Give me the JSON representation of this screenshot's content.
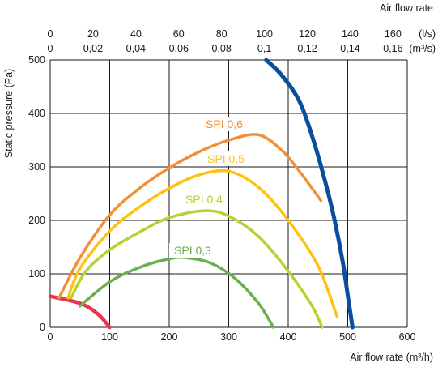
{
  "chart_data": {
    "type": "line",
    "title": "",
    "xlabel": "Air flow rate (m³/h)",
    "ylabel": "Static pressure (Pa)",
    "top_axis_title": "Air flow rate",
    "xlim": [
      0,
      600
    ],
    "ylim": [
      0,
      500
    ],
    "x_ticks": [
      "0",
      "100",
      "200",
      "300",
      "400",
      "500",
      "600"
    ],
    "y_ticks": [
      "0",
      "100",
      "200",
      "300",
      "400",
      "500"
    ],
    "top_ticks_ls": [
      "0",
      "20",
      "40",
      "60",
      "80",
      "100",
      "120",
      "140",
      "160"
    ],
    "top_unit_ls": "(l/s)",
    "top_ticks_m3s": [
      "0",
      "0,02",
      "0,04",
      "0,06",
      "0,08",
      "0,1",
      "0,12",
      "0,14",
      "0,16"
    ],
    "top_unit_m3s": "(m³/s)",
    "grid": true,
    "series": [
      {
        "name": "",
        "color": "#e8344e",
        "x": [
          0,
          50,
          80,
          100
        ],
        "y": [
          58,
          45,
          25,
          0
        ]
      },
      {
        "name": "SPI 0,3",
        "color": "#6ab04c",
        "x": [
          50,
          100,
          150,
          200,
          230,
          270,
          310,
          350,
          375
        ],
        "y": [
          40,
          85,
          112,
          128,
          130,
          120,
          92,
          45,
          0
        ]
      },
      {
        "name": "SPI 0,4",
        "color": "#b5d334",
        "x": [
          35,
          60,
          100,
          150,
          200,
          260,
          300,
          350,
          400,
          440,
          457
        ],
        "y": [
          55,
          105,
          145,
          178,
          205,
          218,
          208,
          170,
          105,
          40,
          0
        ]
      },
      {
        "name": "SPI 0,5",
        "color": "#ffc20e",
        "x": [
          30,
          50,
          100,
          150,
          200,
          250,
          300,
          350,
          400,
          450,
          482
        ],
        "y": [
          55,
          110,
          180,
          225,
          260,
          285,
          292,
          262,
          200,
          115,
          20
        ]
      },
      {
        "name": "SPI 0,6",
        "color": "#f0903a",
        "x": [
          15,
          50,
          100,
          150,
          200,
          250,
          300,
          350,
          390,
          420,
          455
        ],
        "y": [
          55,
          130,
          210,
          260,
          298,
          328,
          350,
          360,
          330,
          290,
          237
        ]
      },
      {
        "name": "",
        "color": "#0a4f9b",
        "x": [
          363,
          390,
          420,
          445,
          465,
          478,
          492,
          500,
          508
        ],
        "y": [
          500,
          470,
          420,
          340,
          260,
          200,
          120,
          60,
          0
        ]
      }
    ]
  }
}
